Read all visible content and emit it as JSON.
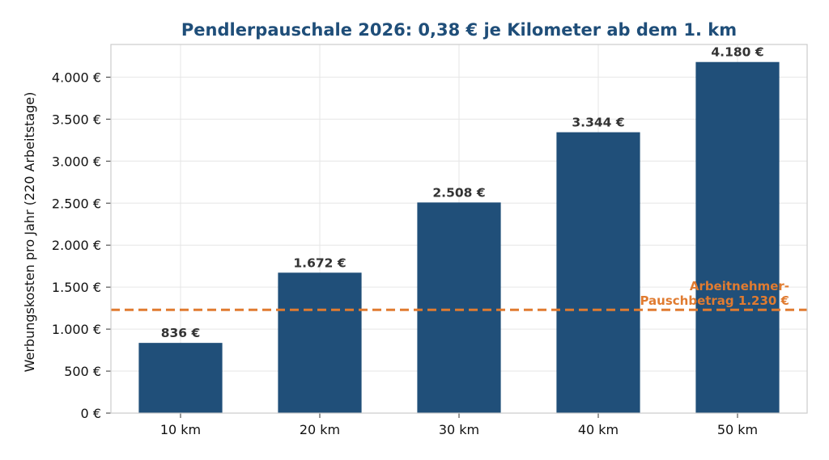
{
  "chart_data": {
    "type": "bar",
    "title": "Pendlerpauschale 2026: 0,38 € je Kilometer ab dem 1. km",
    "xlabel": "",
    "ylabel": "Werbungskosten pro Jahr (220 Arbeitstage)",
    "categories": [
      "10 km",
      "20 km",
      "30 km",
      "40 km",
      "50 km"
    ],
    "values": [
      836,
      1672,
      2508,
      3344,
      4180
    ],
    "value_labels": [
      "836 €",
      "1.672 €",
      "2.508 €",
      "3.344 €",
      "4.180 €"
    ],
    "ylim": [
      0,
      4389
    ],
    "yticks": [
      0,
      500,
      1000,
      1500,
      2000,
      2500,
      3000,
      3500,
      4000
    ],
    "ytick_labels": [
      "0 €",
      "500 €",
      "1.000 €",
      "1.500 €",
      "2.000 €",
      "2.500 €",
      "3.000 €",
      "3.500 €",
      "4.000 €"
    ],
    "grid": true,
    "reference_line": {
      "value": 1230,
      "label_lines": [
        "Arbeitnehmer-",
        "Pauschbetrag 1.230 €"
      ],
      "style": "dashed"
    },
    "colors": {
      "bar": "#204f79",
      "title": "#1f4e79",
      "reference": "#e07b30",
      "grid": "#e6e6e6",
      "axis": "#cccccc"
    }
  }
}
